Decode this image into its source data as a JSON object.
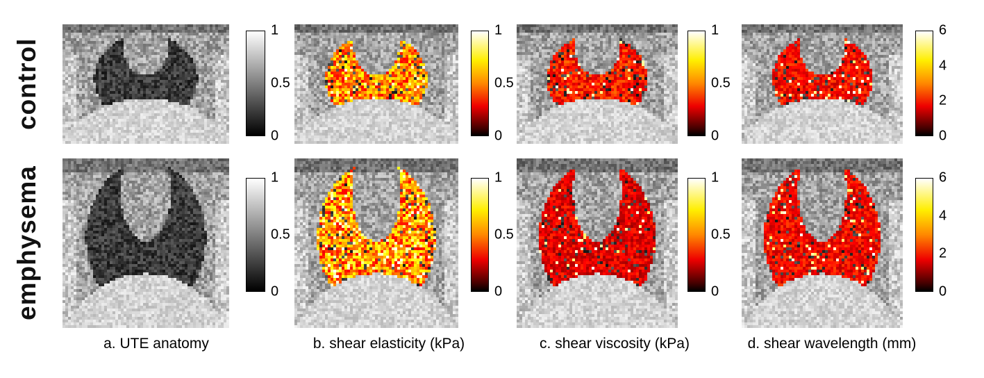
{
  "figure": {
    "background": "#ffffff",
    "rows": [
      {
        "label": "control",
        "shape": {
          "lung": [
            0.5,
            0.46,
            0.31,
            0.38
          ],
          "medi": [
            0.5,
            0.17,
            0.14,
            0.26
          ],
          "dome": [
            0.5,
            1.26,
            0.56,
            0.64
          ]
        }
      },
      {
        "label": "emphysema",
        "shape": {
          "lung": [
            0.5,
            0.47,
            0.36,
            0.45
          ],
          "medi": [
            0.5,
            0.19,
            0.15,
            0.3
          ],
          "dome": [
            0.5,
            1.36,
            0.58,
            0.68
          ]
        }
      }
    ],
    "columns": [
      {
        "caption": "a. UTE anatomy",
        "colorbar": {
          "colormap": "gray",
          "range": [
            0,
            1
          ],
          "ticks": [
            "1",
            "0.5",
            "0"
          ]
        }
      },
      {
        "caption": "b. shear elasticity (kPa)",
        "colorbar": {
          "colormap": "hot",
          "range": [
            0,
            1
          ],
          "ticks": [
            "1",
            "0.5",
            "0"
          ]
        }
      },
      {
        "caption": "c. shear viscosity (kPa)",
        "colorbar": {
          "colormap": "hot",
          "range": [
            0,
            1
          ],
          "ticks": [
            "1",
            "0.5",
            "0"
          ]
        }
      },
      {
        "caption": "d. shear wavelength (mm)",
        "colorbar": {
          "colormap": "hot",
          "range": [
            0,
            6
          ],
          "ticks": [
            "6",
            "4",
            "2",
            "0"
          ]
        }
      }
    ],
    "panels": [
      [
        {
          "seed": 11,
          "overlay": null
        },
        {
          "seed": 12,
          "overlay": {
            "mean": 0.5,
            "spread": 0.36,
            "outlier": 0.07,
            "drop": 0.1
          }
        },
        {
          "seed": 13,
          "overlay": {
            "mean": 0.36,
            "spread": 0.22,
            "outlier": 0.04,
            "drop": 0.1
          }
        },
        {
          "seed": 14,
          "overlay": {
            "mean": 0.34,
            "spread": 0.18,
            "outlier": 0.05,
            "drop": 0.1
          }
        }
      ],
      [
        {
          "seed": 21,
          "overlay": null
        },
        {
          "seed": 22,
          "overlay": {
            "mean": 0.52,
            "spread": 0.4,
            "outlier": 0.1,
            "drop": 0.08
          }
        },
        {
          "seed": 23,
          "overlay": {
            "mean": 0.3,
            "spread": 0.18,
            "outlier": 0.04,
            "drop": 0.08
          }
        },
        {
          "seed": 24,
          "overlay": {
            "mean": 0.33,
            "spread": 0.18,
            "outlier": 0.05,
            "drop": 0.08
          }
        }
      ]
    ]
  }
}
